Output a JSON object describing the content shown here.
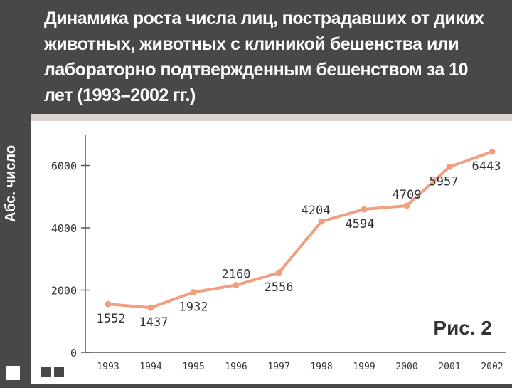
{
  "header": {
    "title": "Динамика роста числа лиц, пострадавших от диких животных, животных с клиникой бешенства или лабораторно подтвержденным бешенством за 10 лет (1993–2002 гг.)",
    "side_label": "Абс. число",
    "figure_label": "Рис. 2"
  },
  "colors": {
    "line": "#f0a080",
    "background_dark": "#4a4748",
    "panel": "#ffffff",
    "text": "#333333"
  },
  "chart_data": {
    "type": "line",
    "title": "Динамика роста числа лиц, пострадавших от диких животных, животных с клиникой бешенства или лабораторно подтвержденным бешенством за 10 лет (1993–2002 гг.)",
    "ylabel": "Абс. число",
    "xlabel": "",
    "x": [
      "1993",
      "1994",
      "1995",
      "1996",
      "1997",
      "1998",
      "1999",
      "2000",
      "2001",
      "2002"
    ],
    "series": [
      {
        "values": [
          1552,
          1437,
          1932,
          2160,
          2556,
          4204,
          4594,
          4709,
          5957,
          6443
        ]
      }
    ],
    "data_labels": [
      "1552",
      "1437",
      "1932",
      "2160",
      "2556",
      "4204",
      "4594",
      "4709",
      "5957",
      "6443"
    ],
    "yticks": [
      "0",
      "2000",
      "4000",
      "6000"
    ],
    "ylim": [
      0,
      6443
    ],
    "grid": false,
    "legend": "none"
  }
}
